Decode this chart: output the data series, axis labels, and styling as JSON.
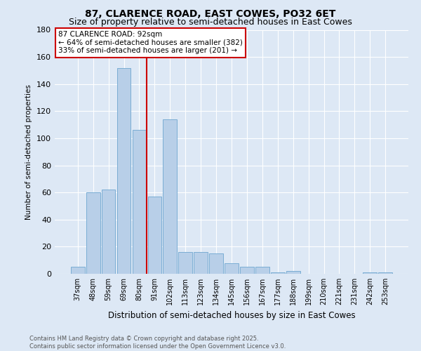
{
  "title": "87, CLARENCE ROAD, EAST COWES, PO32 6ET",
  "subtitle": "Size of property relative to semi-detached houses in East Cowes",
  "xlabel": "Distribution of semi-detached houses by size in East Cowes",
  "ylabel": "Number of semi-detached properties",
  "categories": [
    "37sqm",
    "48sqm",
    "59sqm",
    "69sqm",
    "80sqm",
    "91sqm",
    "102sqm",
    "113sqm",
    "123sqm",
    "134sqm",
    "145sqm",
    "156sqm",
    "167sqm",
    "177sqm",
    "188sqm",
    "199sqm",
    "210sqm",
    "221sqm",
    "231sqm",
    "242sqm",
    "253sqm"
  ],
  "values": [
    5,
    60,
    62,
    152,
    106,
    57,
    114,
    16,
    16,
    15,
    8,
    5,
    5,
    1,
    2,
    0,
    0,
    0,
    0,
    1,
    1
  ],
  "bar_color": "#b8cfe8",
  "bar_edge_color": "#7aadd4",
  "vline_x_index": 5,
  "vline_color": "#cc0000",
  "annotation_title": "87 CLARENCE ROAD: 92sqm",
  "annotation_line1": "← 64% of semi-detached houses are smaller (382)",
  "annotation_line2": "33% of semi-detached houses are larger (201) →",
  "annotation_box_color": "#ffffff",
  "annotation_box_edge": "#cc0000",
  "ylim": [
    0,
    180
  ],
  "yticks": [
    0,
    20,
    40,
    60,
    80,
    100,
    120,
    140,
    160,
    180
  ],
  "footer_line1": "Contains HM Land Registry data © Crown copyright and database right 2025.",
  "footer_line2": "Contains public sector information licensed under the Open Government Licence v3.0.",
  "bg_color": "#dde8f5",
  "plot_bg_color": "#dde8f5",
  "title_fontsize": 10,
  "subtitle_fontsize": 9
}
